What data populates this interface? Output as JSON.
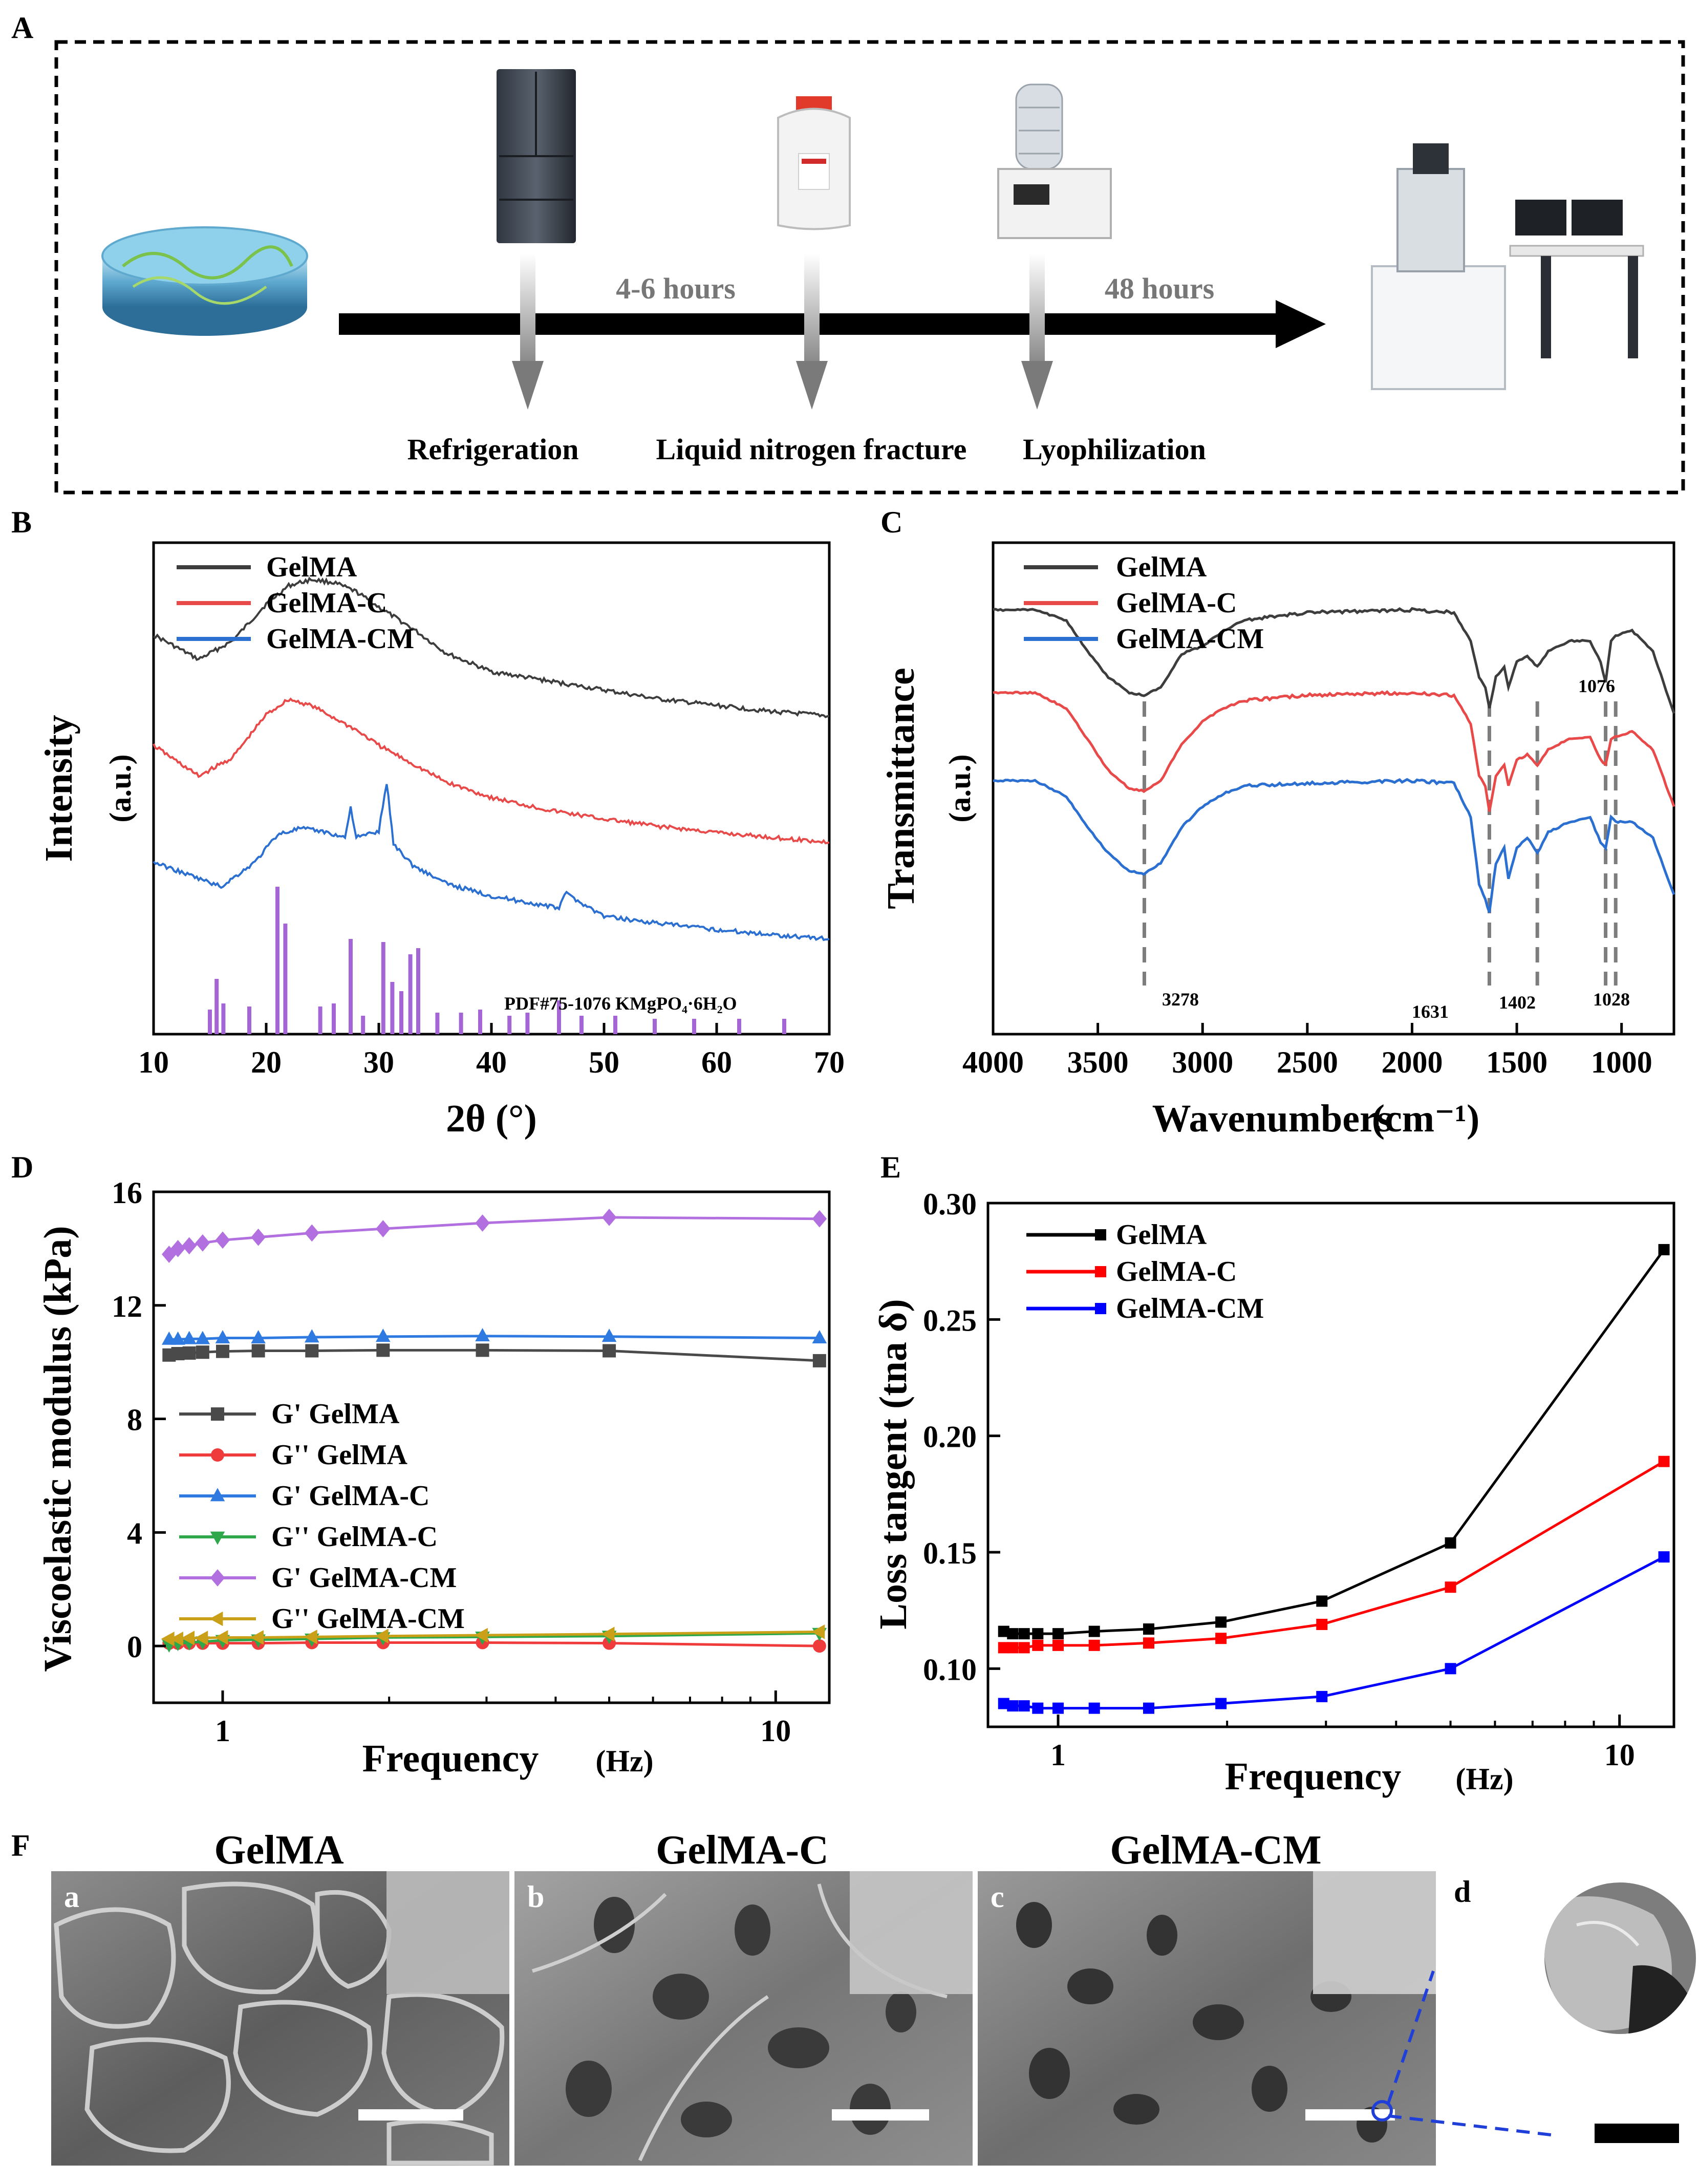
{
  "panel_labels": {
    "A": "A",
    "B": "B",
    "C": "C",
    "D": "D",
    "E": "E",
    "F": "F"
  },
  "panel_a": {
    "durations": [
      "4-6 hours",
      "48 hours"
    ],
    "steps": [
      "Refrigeration",
      "Liquid nitrogen fracture",
      "Lyophilization"
    ],
    "colors": {
      "arrow": "#000000",
      "stem": "#9a9a9a",
      "duration_text": "#777777"
    }
  },
  "panel_f": {
    "titles": [
      "GelMA",
      "GelMA-C",
      "GelMA-CM"
    ],
    "sublabels": [
      "a",
      "b",
      "c",
      "d"
    ]
  },
  "chart_data": [
    {
      "id": "B",
      "type": "line",
      "xlabel": "2θ (°)",
      "ylabel": "Intensity",
      "ylabel_unit": "(a.u.)",
      "xlim": [
        10,
        70
      ],
      "xticks": [
        10,
        20,
        30,
        40,
        50,
        60,
        70
      ],
      "legend_position": "top-left",
      "annotation": "PDF#75-1076 KMgPO₄·6H₂O",
      "series": [
        {
          "name": "GelMA",
          "color": "#3d3d3d",
          "x": [
            10,
            14,
            17,
            20,
            22,
            24,
            26,
            28,
            30,
            33,
            36,
            40,
            45,
            50,
            55,
            60,
            65,
            70
          ],
          "y": [
            6.5,
            6.1,
            6.4,
            7.0,
            7.3,
            7.4,
            7.35,
            7.2,
            6.95,
            6.6,
            6.2,
            5.9,
            5.75,
            5.6,
            5.45,
            5.35,
            5.25,
            5.18
          ]
        },
        {
          "name": "GelMA-C",
          "color": "#e84a4a",
          "x": [
            10,
            14,
            17,
            20,
            22,
            24,
            26,
            28,
            30,
            33,
            36,
            40,
            45,
            50,
            55,
            60,
            65,
            70
          ],
          "y": [
            4.7,
            4.2,
            4.5,
            5.2,
            5.45,
            5.35,
            5.15,
            4.95,
            4.7,
            4.4,
            4.1,
            3.85,
            3.65,
            3.5,
            3.38,
            3.28,
            3.2,
            3.12
          ]
        },
        {
          "name": "GelMA-CM",
          "color": "#2b6fd0",
          "x": [
            10,
            13,
            16,
            19,
            21,
            23,
            25,
            27,
            27.5,
            28,
            30,
            30.7,
            31.3,
            33,
            36,
            40,
            46,
            46.5,
            50,
            55,
            60,
            65,
            70
          ],
          "y": [
            2.8,
            2.6,
            2.4,
            2.8,
            3.25,
            3.35,
            3.3,
            3.2,
            3.7,
            3.2,
            3.3,
            4.1,
            3.1,
            2.75,
            2.45,
            2.25,
            2.05,
            2.3,
            1.92,
            1.8,
            1.7,
            1.62,
            1.55
          ]
        }
      ],
      "reference_peaks": {
        "name": "PDF#75-1076 KMgPO₄·6H₂O",
        "color": "#a466d4",
        "x": [
          15,
          15.6,
          16.2,
          18.5,
          21.0,
          21.7,
          24.8,
          26.0,
          27.5,
          28.6,
          30.4,
          31.2,
          32.0,
          32.8,
          33.5,
          35.2,
          37.3,
          39.0,
          41.6,
          43.2,
          46.0,
          48.0,
          51.0,
          54.5,
          58.0,
          62.0,
          66.0
        ],
        "h": [
          0.4,
          0.9,
          0.5,
          0.45,
          2.4,
          1.8,
          0.45,
          0.5,
          1.55,
          0.3,
          1.5,
          0.85,
          0.7,
          1.3,
          1.4,
          0.35,
          0.35,
          0.4,
          0.3,
          0.35,
          0.55,
          0.3,
          0.3,
          0.25,
          0.25,
          0.25,
          0.25
        ]
      }
    },
    {
      "id": "C",
      "type": "line",
      "xlabel": "Wavenumbers",
      "xlabel_unit": "(cm⁻¹)",
      "ylabel": "Transmittance",
      "ylabel_unit": "(a.u.)",
      "xlim": [
        4000,
        750
      ],
      "xticks": [
        4000,
        3500,
        3000,
        2500,
        2000,
        1500,
        1000
      ],
      "legend_position": "top-left",
      "peak_labels": [
        "3278",
        "1631",
        "1402",
        "1076",
        "1028"
      ],
      "peak_lines": [
        3278,
        1631,
        1402,
        1076,
        1028
      ],
      "series": [
        {
          "name": "GelMA",
          "color": "#3d3d3d",
          "x": [
            4000,
            3800,
            3650,
            3550,
            3450,
            3350,
            3280,
            3200,
            3100,
            3000,
            2900,
            2800,
            2500,
            2000,
            1800,
            1720,
            1680,
            1650,
            1631,
            1600,
            1560,
            1540,
            1500,
            1450,
            1402,
            1350,
            1250,
            1150,
            1100,
            1076,
            1050,
            1028,
            950,
            850,
            750
          ],
          "y": [
            8.2,
            8.2,
            8.0,
            7.4,
            6.9,
            6.6,
            6.55,
            6.7,
            7.35,
            7.5,
            7.8,
            8.0,
            8.15,
            8.2,
            8.15,
            7.6,
            6.9,
            6.7,
            6.3,
            6.9,
            7.1,
            6.7,
            7.2,
            7.3,
            7.1,
            7.4,
            7.6,
            7.6,
            7.2,
            6.8,
            7.6,
            7.7,
            7.8,
            7.4,
            6.2
          ]
        },
        {
          "name": "GelMA-C",
          "color": "#e84a4a",
          "x": [
            4000,
            3800,
            3650,
            3550,
            3450,
            3350,
            3280,
            3200,
            3100,
            3000,
            2900,
            2800,
            2500,
            2000,
            1800,
            1720,
            1680,
            1650,
            1631,
            1600,
            1560,
            1540,
            1500,
            1450,
            1402,
            1350,
            1250,
            1150,
            1100,
            1076,
            1050,
            1028,
            950,
            850,
            750
          ],
          "y": [
            6.6,
            6.6,
            6.3,
            5.7,
            5.1,
            4.75,
            4.7,
            4.9,
            5.6,
            6.05,
            6.3,
            6.45,
            6.55,
            6.6,
            6.55,
            6.0,
            5.0,
            4.8,
            4.3,
            5.0,
            5.2,
            4.8,
            5.3,
            5.4,
            5.2,
            5.5,
            5.7,
            5.75,
            5.3,
            5.2,
            5.7,
            5.75,
            5.85,
            5.5,
            4.4
          ]
        },
        {
          "name": "GelMA-CM",
          "color": "#2b6fd0",
          "x": [
            4000,
            3800,
            3650,
            3550,
            3450,
            3350,
            3280,
            3200,
            3100,
            3000,
            2900,
            2800,
            2500,
            2000,
            1800,
            1720,
            1680,
            1650,
            1631,
            1600,
            1560,
            1540,
            1500,
            1450,
            1402,
            1350,
            1250,
            1150,
            1100,
            1076,
            1050,
            1028,
            950,
            850,
            750
          ],
          "y": [
            4.9,
            4.9,
            4.6,
            4.0,
            3.5,
            3.15,
            3.1,
            3.3,
            4.0,
            4.4,
            4.65,
            4.8,
            4.85,
            4.9,
            4.85,
            4.2,
            2.9,
            2.6,
            2.35,
            3.3,
            3.6,
            3.0,
            3.6,
            3.8,
            3.5,
            3.9,
            4.1,
            4.2,
            3.7,
            3.6,
            4.2,
            4.1,
            4.1,
            3.8,
            2.7
          ]
        }
      ]
    },
    {
      "id": "D",
      "type": "line",
      "xscale": "log",
      "xlabel": "Frequency",
      "xlabel_unit": "(Hz)",
      "ylabel": "Viscoelastic modulus (kPa)",
      "xlim": [
        0.75,
        12.5
      ],
      "ylim": [
        -2,
        16
      ],
      "xticks": [
        1,
        10
      ],
      "yticks": [
        0,
        4,
        8,
        12,
        16
      ],
      "legend_position": "center-left",
      "x": [
        0.8,
        0.83,
        0.87,
        0.92,
        1.0,
        1.16,
        1.45,
        1.95,
        2.95,
        5.0,
        12.0
      ],
      "series": [
        {
          "name": "G'  GelMA",
          "color": "#4a4a4a",
          "marker": "square",
          "values": [
            10.25,
            10.3,
            10.32,
            10.35,
            10.38,
            10.4,
            10.4,
            10.42,
            10.42,
            10.4,
            10.05
          ]
        },
        {
          "name": "G'' GelMA",
          "color": "#ef3b3b",
          "marker": "circle",
          "values": [
            0.1,
            0.1,
            0.1,
            0.1,
            0.1,
            0.1,
            0.12,
            0.12,
            0.12,
            0.1,
            0.0
          ]
        },
        {
          "name": "G'  GelMA-C",
          "color": "#2f7ae0",
          "marker": "triangle-up",
          "values": [
            10.8,
            10.8,
            10.82,
            10.82,
            10.85,
            10.85,
            10.88,
            10.9,
            10.92,
            10.9,
            10.85
          ]
        },
        {
          "name": "G'' GelMA-C",
          "color": "#2ea84a",
          "marker": "triangle-down",
          "values": [
            0.05,
            0.1,
            0.12,
            0.15,
            0.2,
            0.22,
            0.25,
            0.3,
            0.32,
            0.35,
            0.45
          ]
        },
        {
          "name": "G'  GelMA-CM",
          "color": "#b26fe0",
          "marker": "diamond",
          "values": [
            13.8,
            14.0,
            14.1,
            14.2,
            14.3,
            14.4,
            14.55,
            14.7,
            14.9,
            15.1,
            15.05
          ]
        },
        {
          "name": "G'' GelMA-CM",
          "color": "#c9a017",
          "marker": "triangle-left",
          "values": [
            0.25,
            0.25,
            0.28,
            0.28,
            0.3,
            0.3,
            0.32,
            0.35,
            0.38,
            0.42,
            0.5
          ]
        }
      ]
    },
    {
      "id": "E",
      "type": "line",
      "xscale": "log",
      "xlabel": "Frequency",
      "xlabel_unit": "(Hz)",
      "ylabel": "Loss tangent (tna δ)",
      "xlim": [
        0.75,
        12.5
      ],
      "ylim": [
        0.075,
        0.3
      ],
      "xticks": [
        1,
        10
      ],
      "yticks": [
        0.1,
        0.15,
        0.2,
        0.25,
        0.3
      ],
      "ytick_labels": [
        "0.10",
        "0.15",
        "0.20",
        "0.25",
        "0.30"
      ],
      "legend_position": "top-left",
      "x": [
        0.8,
        0.83,
        0.87,
        0.92,
        1.0,
        1.16,
        1.45,
        1.95,
        2.95,
        5.0,
        12.0
      ],
      "series": [
        {
          "name": "GelMA",
          "color": "#000000",
          "marker": "square",
          "values": [
            0.116,
            0.115,
            0.115,
            0.115,
            0.115,
            0.116,
            0.117,
            0.12,
            0.129,
            0.154,
            0.28
          ]
        },
        {
          "name": "GelMA-C",
          "color": "#ff0000",
          "marker": "square",
          "values": [
            0.109,
            0.109,
            0.109,
            0.11,
            0.11,
            0.11,
            0.111,
            0.113,
            0.119,
            0.135,
            0.189
          ]
        },
        {
          "name": "GelMA-CM",
          "color": "#0000ff",
          "marker": "square",
          "values": [
            0.085,
            0.084,
            0.084,
            0.083,
            0.083,
            0.083,
            0.083,
            0.085,
            0.088,
            0.1,
            0.148
          ]
        }
      ]
    }
  ]
}
